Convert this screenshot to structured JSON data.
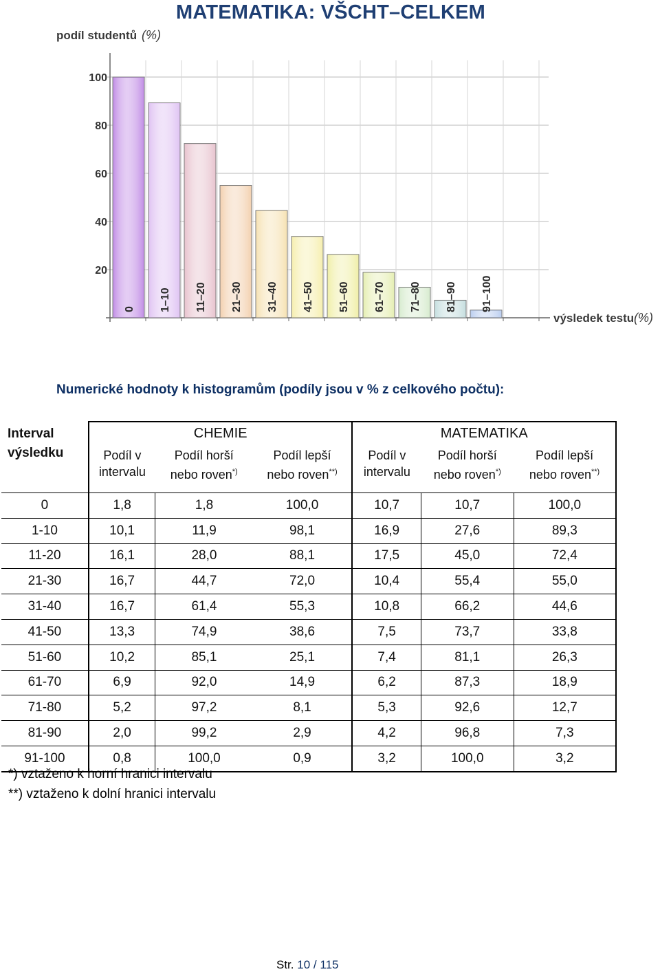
{
  "chart_data": {
    "type": "bar",
    "title": "MATEMATIKA: VŠCHT–CELKEM",
    "ylabel": "podíl studentů",
    "ylabel_unit": "(%)",
    "xlabel": "výsledek testu",
    "xlabel_unit": "(%)",
    "categories": [
      "0",
      "1–10",
      "11–20",
      "21–30",
      "31–40",
      "41–50",
      "51–60",
      "61–70",
      "71–80",
      "81–90",
      "91–100"
    ],
    "values": [
      100.0,
      89.3,
      72.4,
      55.0,
      44.6,
      33.8,
      26.3,
      18.9,
      12.7,
      7.3,
      3.2
    ],
    "colors": [
      "#c390e6",
      "#e0c4f3",
      "#e8c4cf",
      "#f3d2b2",
      "#f6e2b4",
      "#f6efb0",
      "#f0efaa",
      "#e6efb5",
      "#d8ecd0",
      "#c7dfe0",
      "#bccff0"
    ],
    "yticks": [
      "20",
      "40",
      "60",
      "80",
      "100"
    ],
    "ylim": [
      0,
      110
    ],
    "grid": true
  },
  "caption": "Numerické hodnoty k histogramům (podíly jsou v % z celkového počtu):",
  "table": {
    "interval_header": [
      "Interval",
      "výsledku"
    ],
    "group_chemie": "CHEMIE",
    "group_matematika": "MATEMATIKA",
    "sub_podil_interval": [
      "Podíl v",
      "intervalu"
    ],
    "sub_podil_horsi": [
      "Podíl horší",
      "nebo roven"
    ],
    "sub_podil_lepsi": [
      "Podíl lepší",
      "nebo roven"
    ],
    "mark_horsi": "*)",
    "mark_lepsi": "**)",
    "rows": [
      [
        "0",
        "1,8",
        "1,8",
        "100,0",
        "10,7",
        "10,7",
        "100,0"
      ],
      [
        "1-10",
        "10,1",
        "11,9",
        "98,1",
        "16,9",
        "27,6",
        "89,3"
      ],
      [
        "11-20",
        "16,1",
        "28,0",
        "88,1",
        "17,5",
        "45,0",
        "72,4"
      ],
      [
        "21-30",
        "16,7",
        "44,7",
        "72,0",
        "10,4",
        "55,4",
        "55,0"
      ],
      [
        "31-40",
        "16,7",
        "61,4",
        "55,3",
        "10,8",
        "66,2",
        "44,6"
      ],
      [
        "41-50",
        "13,3",
        "74,9",
        "38,6",
        "7,5",
        "73,7",
        "33,8"
      ],
      [
        "51-60",
        "10,2",
        "85,1",
        "25,1",
        "7,4",
        "81,1",
        "26,3"
      ],
      [
        "61-70",
        "6,9",
        "92,0",
        "14,9",
        "6,2",
        "87,3",
        "18,9"
      ],
      [
        "71-80",
        "5,2",
        "97,2",
        "8,1",
        "5,3",
        "92,6",
        "12,7"
      ],
      [
        "81-90",
        "2,0",
        "99,2",
        "2,9",
        "4,2",
        "96,8",
        "7,3"
      ],
      [
        "91-100",
        "0,8",
        "100,0",
        "0,9",
        "3,2",
        "100,0",
        "3,2"
      ]
    ]
  },
  "footnotes": [
    "*) vztaženo k horní hranici intervalu",
    "**) vztaženo k dolní hranici intervalu"
  ],
  "page": {
    "prefix": "Str.",
    "current": "10",
    "separator": "/",
    "total": "115"
  }
}
